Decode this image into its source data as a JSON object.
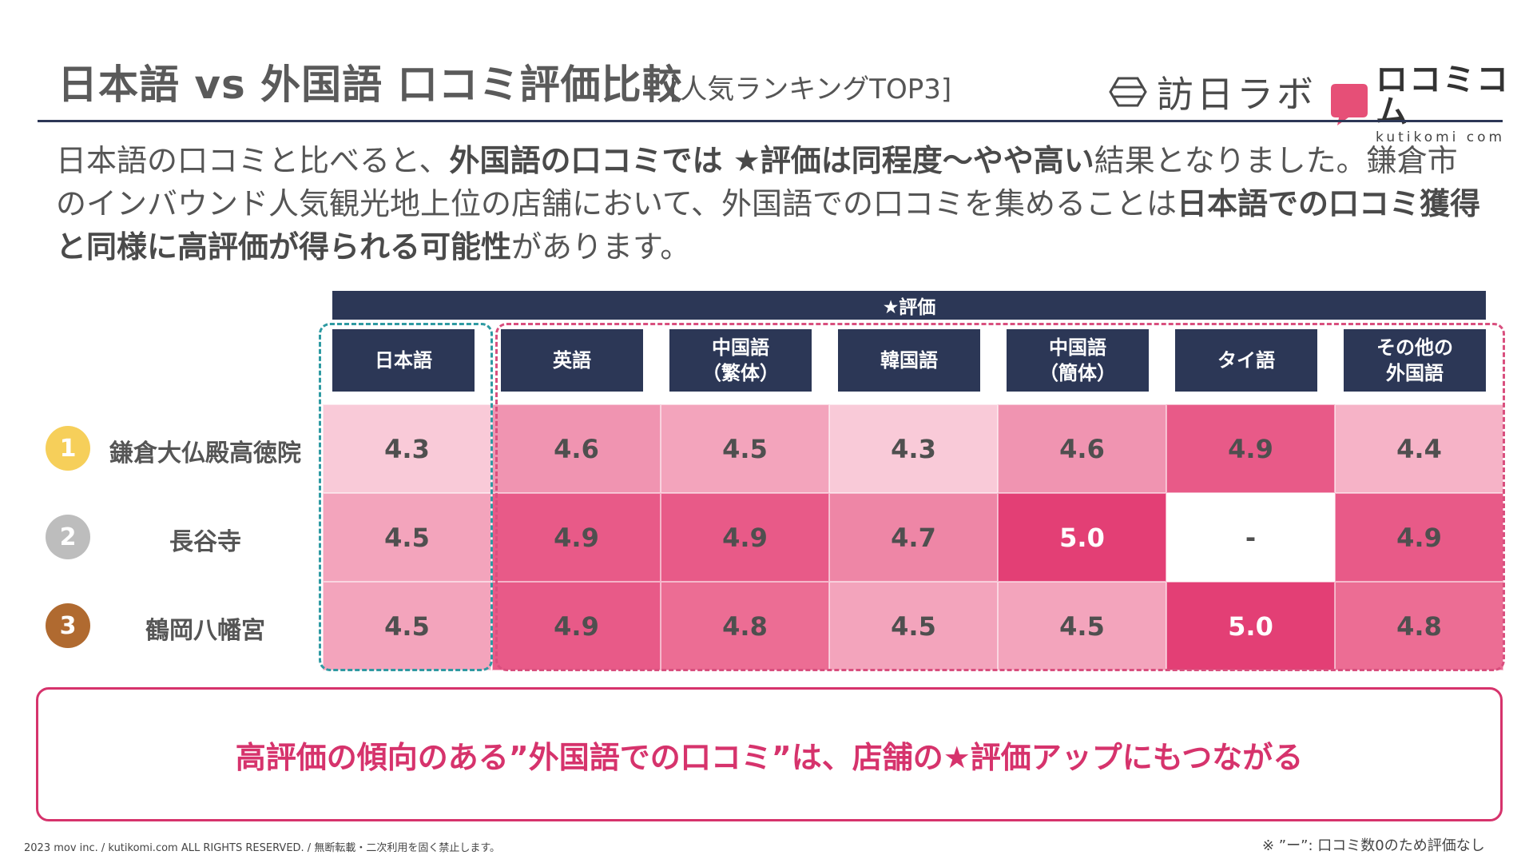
{
  "header": {
    "title": "日本語 vs 外国語 口コミ評価比較",
    "subtitle": "[人気ランキングTOP3]",
    "logo_labo": "訪日ラボ",
    "logo_kuti_name": "ロコミコム",
    "logo_kuti_sub": "kutikomi com",
    "brand_pink": "#e64f77",
    "navy": "#2c3756"
  },
  "intro": {
    "p1": "日本語の口コミと比べると、",
    "b1": "外国語の口コミでは ★評価は同程度〜やや高い",
    "p2": "結果となりました。鎌倉市のインバウンド人気観光地上位の店舗において、外国語での口コミを集めることは",
    "b2": "日本語での口コミ獲得と同様に高評価が得られる可能性",
    "p3": "があります。"
  },
  "table": {
    "eval_label": "★評価",
    "columns": [
      "日本語",
      "英語",
      "中国語\n（繁体）",
      "韓国語",
      "中国語\n（簡体）",
      "タイ語",
      "その他の\n外国語"
    ],
    "rows": [
      {
        "rank": "1",
        "name": "鎌倉大仏殿高徳院",
        "rank_color": "#f6cf5a",
        "values": [
          "4.3",
          "4.6",
          "4.5",
          "4.3",
          "4.6",
          "4.9",
          "4.4"
        ]
      },
      {
        "rank": "2",
        "name": "長谷寺",
        "rank_color": "#bdbdbd",
        "values": [
          "4.5",
          "4.9",
          "4.9",
          "4.7",
          "5.0",
          "-",
          "4.9"
        ]
      },
      {
        "rank": "3",
        "name": "鶴岡八幡宮",
        "rank_color": "#b06a30",
        "values": [
          "4.5",
          "4.9",
          "4.8",
          "4.5",
          "4.5",
          "5.0",
          "4.8"
        ]
      }
    ],
    "heat_colors": {
      "4.3": "#f9cad8",
      "4.4": "#f6b3c7",
      "4.5": "#f3a4bc",
      "4.6": "#f094b1",
      "4.7": "#ee86a6",
      "4.8": "#ec6d94",
      "4.9": "#e85a88",
      "5.0": "#e33f75"
    }
  },
  "callout": {
    "text": "高評価の傾向のある”外国語での口コミ”は、店舗の★評価アップにもつながる"
  },
  "footer": {
    "copyright": "2023 mov inc. / kutikomi.com ALL RIGHTS RESERVED. / 無断転載・二次利用を固く禁止します。",
    "note": "※ ”ー”: 口コミ数0のため評価なし"
  }
}
